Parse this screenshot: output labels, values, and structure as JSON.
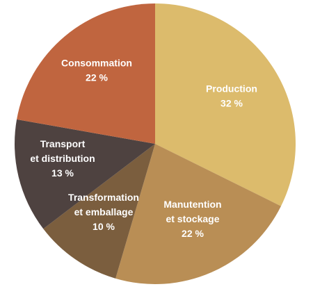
{
  "chart_data": {
    "type": "pie",
    "start_angle_deg": 0,
    "direction": "clockwise",
    "slices": [
      {
        "name": "Production",
        "lines": [
          "Production",
          "32 %"
        ],
        "value": 32,
        "color": "#dcbb6c"
      },
      {
        "name": "Manutention et stockage",
        "lines": [
          "Manutention",
          "et stockage",
          "22 %"
        ],
        "value": 22,
        "color": "#b98e55"
      },
      {
        "name": "Transformation et emballage",
        "lines": [
          "Transformation",
          "et emballage",
          "10 %"
        ],
        "value": 10,
        "color": "#7b5e3e"
      },
      {
        "name": "Transport et distribution",
        "lines": [
          "Transport",
          "et distribution",
          "13 %"
        ],
        "value": 13,
        "color": "#4e4240"
      },
      {
        "name": "Consommation",
        "lines": [
          "Consommation",
          "22 %"
        ],
        "value": 22,
        "color": "#c0653f"
      }
    ]
  }
}
